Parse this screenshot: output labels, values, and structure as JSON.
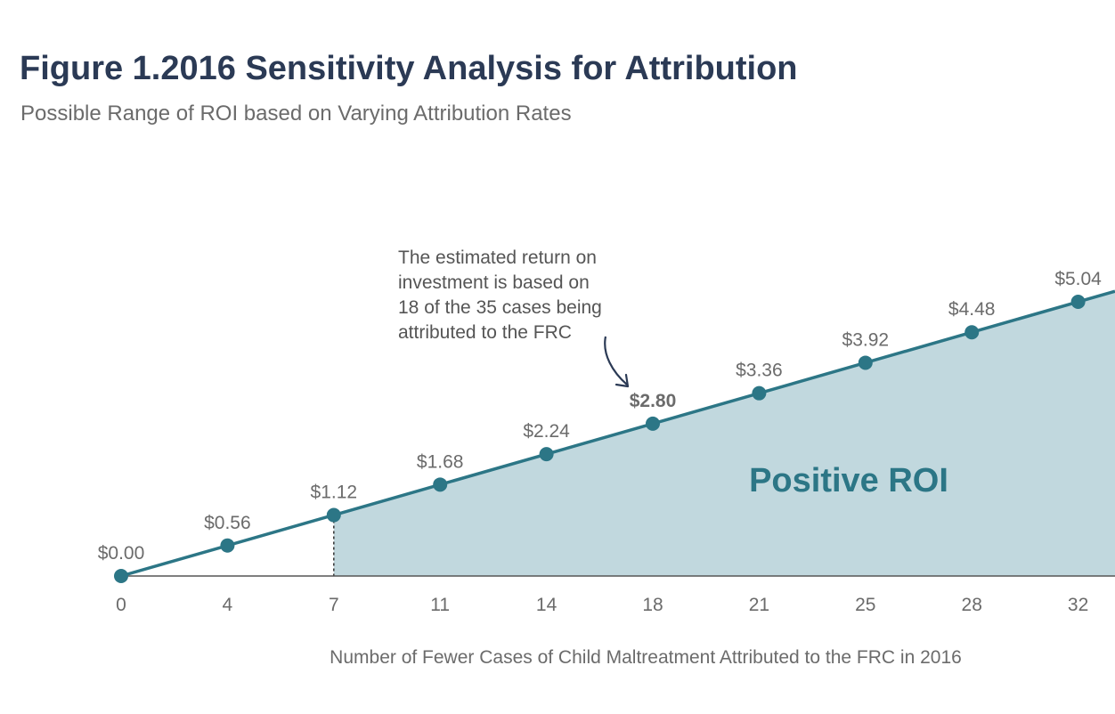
{
  "chart_data": {
    "type": "area",
    "title": "Figure 1.2016 Sensitivity Analysis for Attribution",
    "subtitle": "Possible Range of ROI based on Varying Attribution Rates",
    "xlabel": "Number of Fewer Cases of Child Maltreatment Attributed to the FRC in 2016",
    "ylabel": "",
    "x": [
      0,
      4,
      7,
      11,
      14,
      18,
      21,
      25,
      28,
      32
    ],
    "x_tick_labels": [
      "0",
      "4",
      "7",
      "11",
      "14",
      "18",
      "21",
      "25",
      "28",
      "32"
    ],
    "values": [
      0.0,
      0.56,
      1.12,
      1.68,
      2.24,
      2.8,
      3.36,
      3.92,
      4.48,
      5.04
    ],
    "data_labels": [
      "$0.00",
      "$0.56",
      "$1.12",
      "$1.68",
      "$2.24",
      "$2.80",
      "$3.36",
      "$3.92",
      "$4.48",
      "$5.04"
    ],
    "highlight_label_index": 5,
    "shaded_region": {
      "label": "Positive ROI",
      "start_index": 2
    },
    "annotation": {
      "lines": [
        "The estimated return on",
        "investment is based on",
        "18 of the 35 cases being",
        "attributed to the FRC"
      ],
      "points_to_index": 5
    },
    "ylim": [
      0,
      5.5
    ],
    "grid": false,
    "legend": "none",
    "colors": {
      "line": "#2c7686",
      "marker": "#2c7686",
      "fill": "#c1d8de",
      "region_label": "#2c7686",
      "axis": "#555555",
      "title": "#2b3a55",
      "text": "#6b6b6b"
    }
  }
}
